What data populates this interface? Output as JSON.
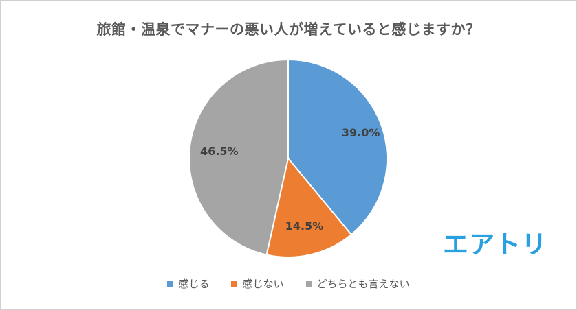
{
  "chart_data": {
    "type": "pie",
    "title": "旅館・温泉でマナーの悪い人が増えていると感じますか？",
    "categories": [
      "感じる",
      "感じない",
      "どちらとも言えない"
    ],
    "values": [
      39.0,
      14.5,
      46.5
    ],
    "data_labels": [
      "39.0%",
      "14.5%",
      "46.5%"
    ],
    "colors": [
      "#5b9bd5",
      "#ed7d31",
      "#a5a5a5"
    ],
    "legend_position": "bottom",
    "start_angle": "12 o'clock, clockwise"
  },
  "logo": {
    "text": "エアトリ",
    "color": "#29a0e0"
  }
}
